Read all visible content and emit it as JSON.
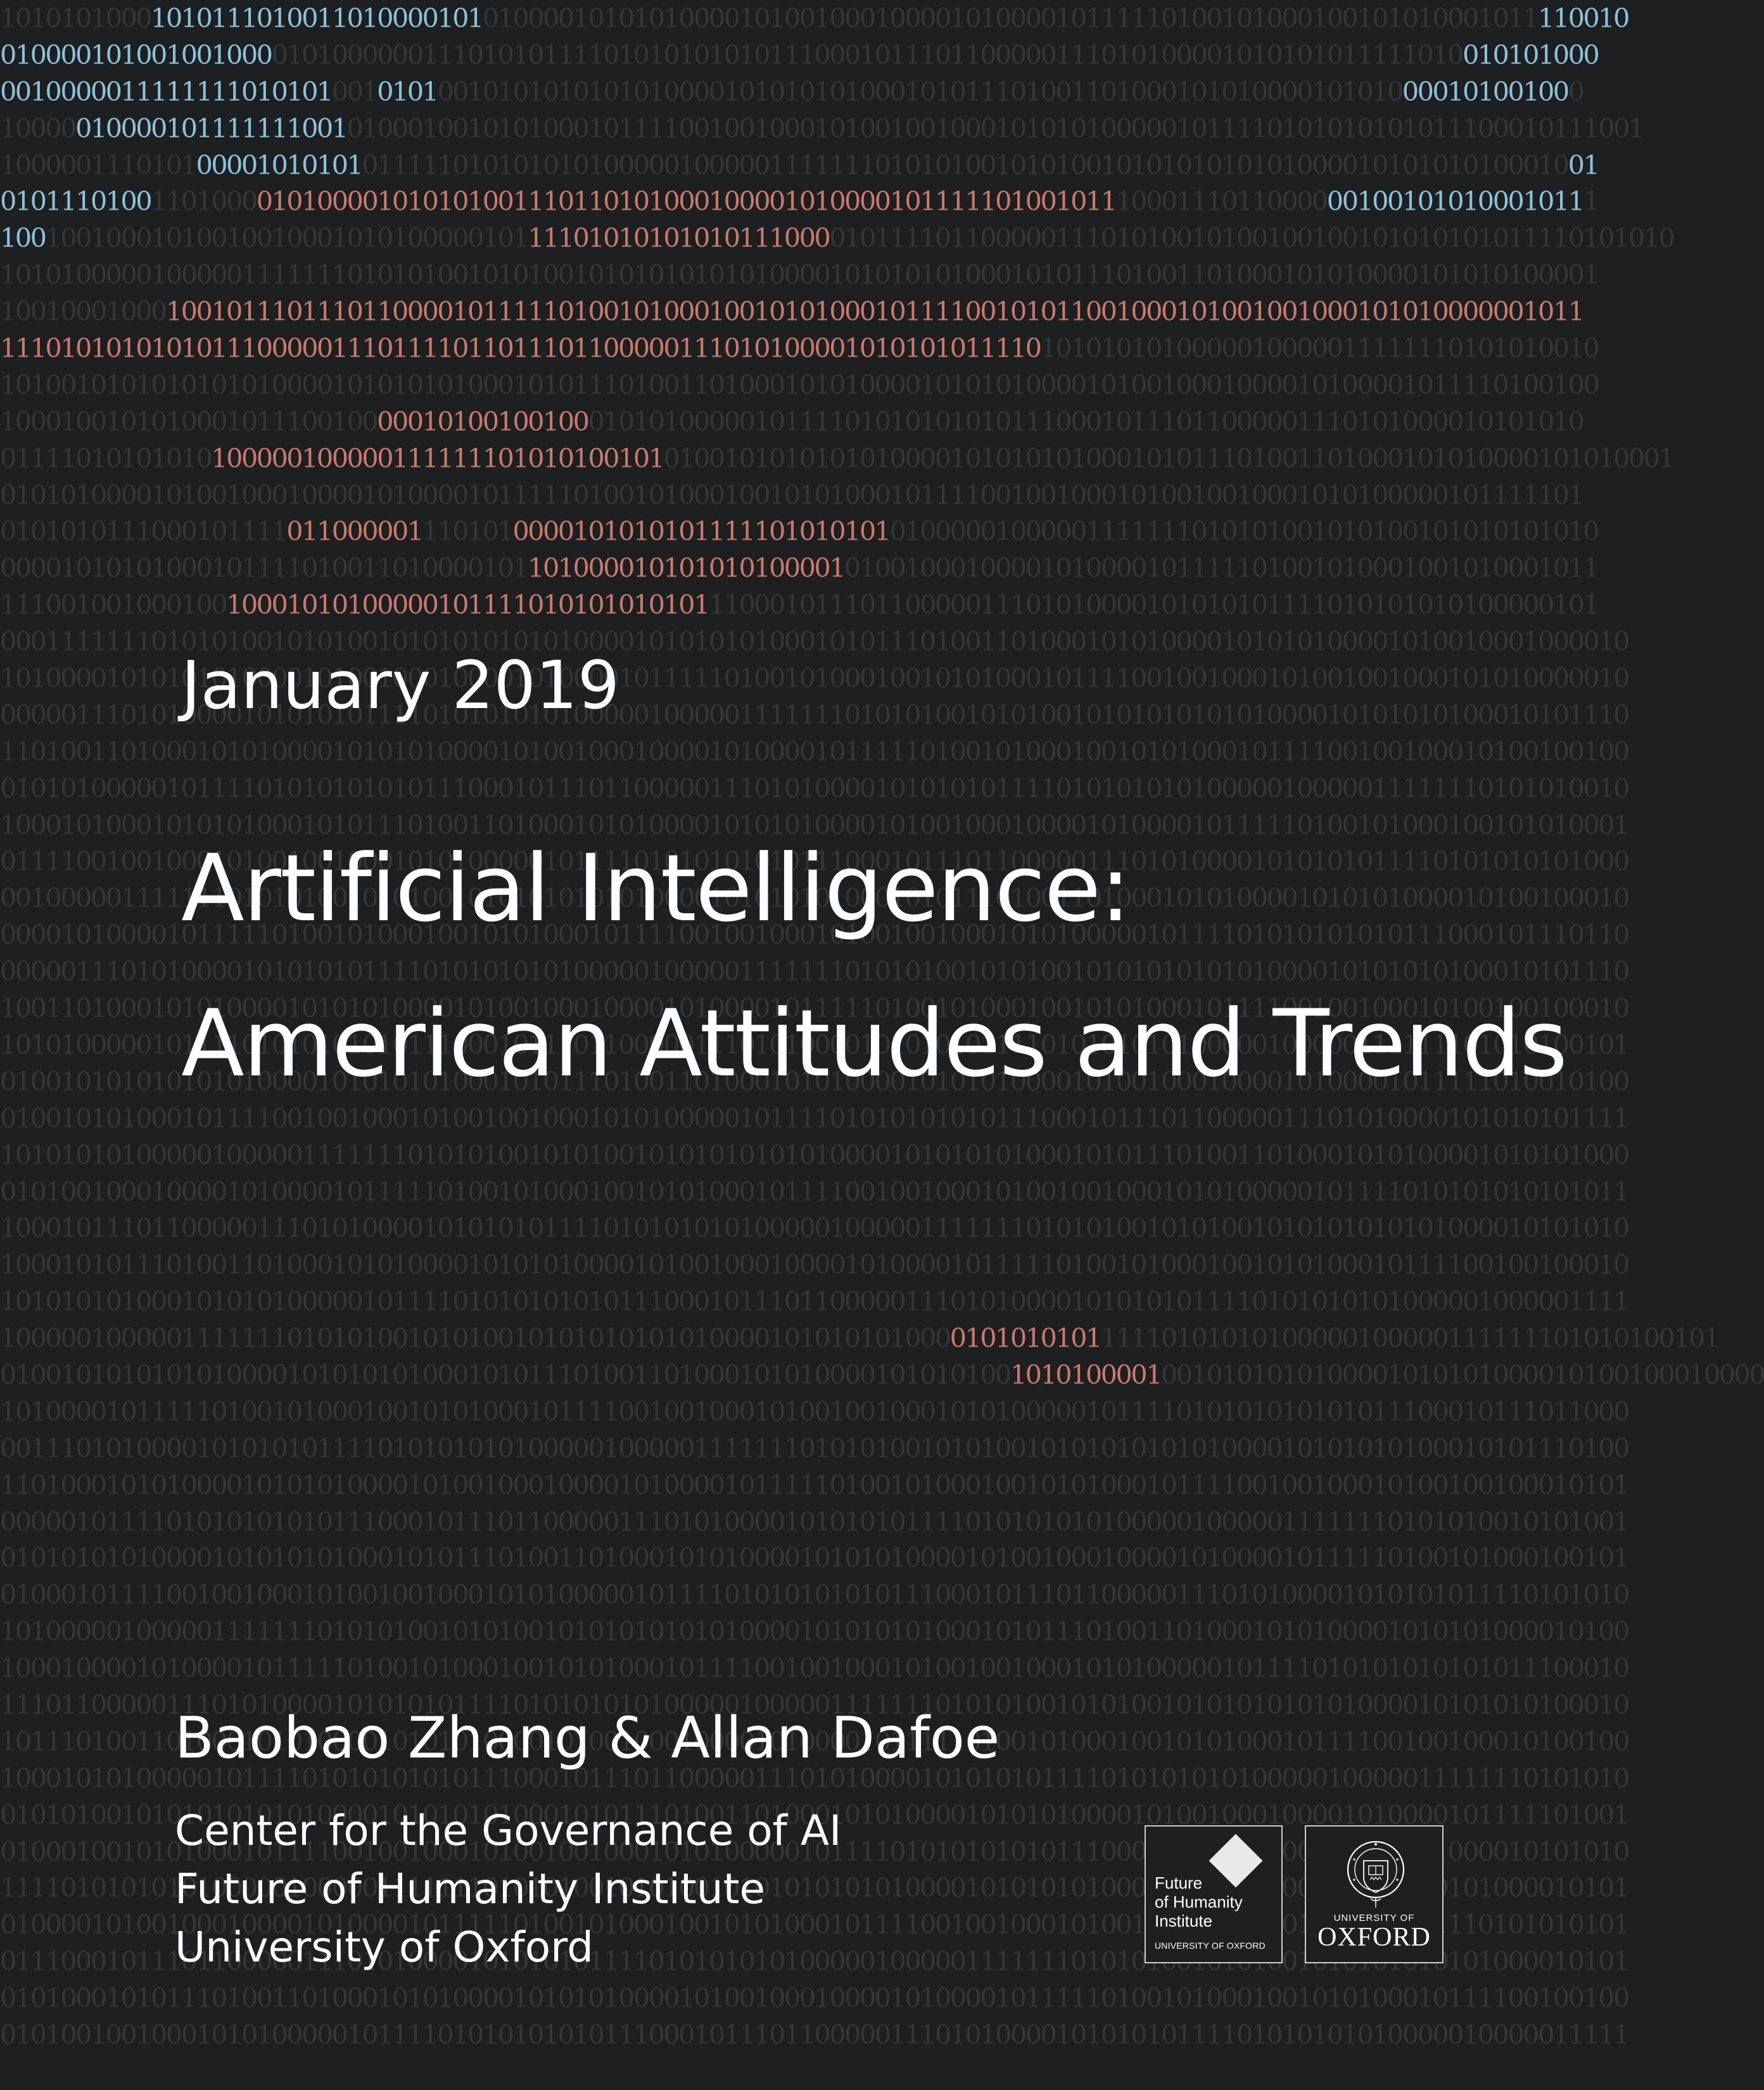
{
  "cover": {
    "date": "January 2019",
    "title_line_1": "Artificial Intelligence:",
    "title_line_2": "American Attitudes and Trends",
    "authors": "Baobao Zhang & Allan Dafoe",
    "affiliations": [
      "Center for the Governance of AI",
      "Future of Humanity Institute",
      "University of Oxford"
    ]
  },
  "logos": {
    "fhi": {
      "icon": "diamond-icon",
      "lines": [
        "Future",
        "of Humanity",
        "Institute"
      ],
      "subtitle": "UNIVERSITY OF OXFORD"
    },
    "oxford": {
      "icon": "oxford-seal-icon",
      "small": "UNIVERSITY OF",
      "big": "OXFORD"
    }
  },
  "background": {
    "style": "binary-digits",
    "colors": {
      "base": "#1e1f21",
      "dim_digits": "#2b2c2f",
      "highlight_blue": "#8cc3db",
      "highlight_red": "#c97a6d"
    },
    "rows": [
      [
        [
          "d",
          "1010101000"
        ],
        [
          "b",
          "1010111010011010000101"
        ],
        [
          "d",
          "0100001010101000010100100010000101000010111110100101000100101010001011"
        ],
        [
          "b",
          "110010"
        ]
      ],
      [
        [
          "b",
          "010000101001001000"
        ],
        [
          "d",
          "0101000000111010101111010101010101110001011101100000111010100001010101011111010"
        ],
        [
          "b",
          "010101000"
        ]
      ],
      [
        [
          "b",
          "0010000011111111010101"
        ],
        [
          "d",
          "001"
        ],
        [
          "b",
          "0101"
        ],
        [
          "d",
          "0010101010101010000101010101000101011101001101000101010000101010"
        ],
        [
          "b",
          "00010100100"
        ],
        [
          "d",
          "0"
        ]
      ],
      [
        [
          "d",
          "10000"
        ],
        [
          "b",
          "010000101111111001"
        ],
        [
          "d",
          "01000100101010001011110010010001010010010001010101000001011110101010101011100010111001"
        ]
      ],
      [
        [
          "d",
          "1000001110101"
        ],
        [
          "b",
          "00001010101"
        ],
        [
          "d",
          "01111101010101010000010000011111110101010010101001010101010101000010101010100010"
        ],
        [
          "b",
          "01"
        ]
      ],
      [
        [
          "b",
          "0101110100"
        ],
        [
          "d",
          "1101000"
        ],
        [
          "r",
          "010100001010101001110110101000100001010000101111101001011"
        ],
        [
          "d",
          "10001110110000"
        ],
        [
          "b",
          "00100101010001011"
        ],
        [
          "d",
          "1"
        ]
      ],
      [
        [
          "b",
          "100"
        ],
        [
          "d",
          "10010001010010010001010100000101"
        ],
        [
          "r",
          "11101010101010111000"
        ],
        [
          "d",
          "01011110110000011101010010100100100101010101011110101010"
        ]
      ],
      [
        [
          "d",
          "1010100000100000111111101010100101010010101010101010000101010101000101011101001101000101010000101010100001"
        ]
      ],
      [
        [
          "d",
          "10010001000"
        ],
        [
          "r",
          "1001011101110110000101111101001010001001010100010111100101011001000101001001000101010000001011"
        ]
      ],
      [
        [
          "r",
          "111010101010101110000011101111011011101100000111010100001010101011110"
        ],
        [
          "d",
          "1010101010000010000011111110101010010"
        ]
      ],
      [
        [
          "d",
          "1010010101010101010000101010101000101011101001101000101010000101010100001010010001000010100001011110100100"
        ]
      ],
      [
        [
          "d",
          "1000100101010001011100100"
        ],
        [
          "r",
          "00010100100100"
        ],
        [
          "d",
          "010101000001011110101010101011100010111011000001110101000010101010"
        ]
      ],
      [
        [
          "d",
          "01111010101010"
        ],
        [
          "r",
          "100000100000111111101010100101"
        ],
        [
          "d",
          "0100101010101010000101010101000101011101001101000101010000101010001"
        ]
      ],
      [
        [
          "d",
          "010101000010100100010000101000010111110100101000100101010001011110010010001010010010001010100000101111101"
        ]
      ],
      [
        [
          "d",
          "0101010111000101111"
        ],
        [
          "r",
          "011000001"
        ],
        [
          "d",
          "110101"
        ],
        [
          "r",
          "0000101010101111101010101"
        ],
        [
          "d",
          "01000001000001111111010101001010100101010101010"
        ]
      ],
      [
        [
          "d",
          "00001010101000101111010011010000101"
        ],
        [
          "r",
          "101000010101010100001"
        ],
        [
          "d",
          "01001000100001010000101111101001010001001010001011"
        ]
      ],
      [
        [
          "d",
          "111001001000100"
        ],
        [
          "r",
          "10001010100000101111010101010101"
        ],
        [
          "d",
          "11000101110110000011101010000101010101111010101010100000101"
        ]
      ],
      [
        [
          "d",
          "000111111101010100101010010101010101010000101010101000101011101001101000101010000101010100001010010001000010"
        ]
      ],
      [
        [
          "d",
          "101000010101010100001010010001000010100001011111010010100010010101000101111001001000101001001000101010000010"
        ]
      ],
      [
        [
          "d",
          "000001110101000010101010111101010101010000010000011111110101010010101001010101010101000010101010100010101110"
        ]
      ],
      [
        [
          "d",
          "110100110100010101000010101010000101001000100001010000101111101001010001001010100010111100100100010100100100"
        ]
      ],
      [
        [
          "d",
          "010101000001011110101010101011100010111011000001110101000010101010111101010101010000010000011111110101010010"
        ]
      ],
      [
        [
          "d",
          "100010100010101010001010111010011010001010100001010101000010100100010000101000010111110100101000100101010001"
        ]
      ],
      [
        [
          "d",
          "011110010010001010010010001010100000101111010101010101110001011101100000111010100001010101011110101010101000"
        ]
      ],
      [
        [
          "d",
          "001000001111111010101001010100101010101010100001010101010001010111010011010001010100001010101000010100100010"
        ]
      ],
      [
        [
          "d",
          "000010100001011111010010100010010101000101111001001000101001001000101010000010111101010101010111000101110110"
        ]
      ],
      [
        [
          "d",
          "000001110101000010101010111101010101010000010000011111110101010010101001010101010101000010101010100010101110"
        ]
      ],
      [
        [
          "d",
          "100110100010101000010101010000101001000100001010000101111101001010001001010100010111100100100010100100100010"
        ]
      ],
      [
        [
          "d",
          "101010000010111101010101010111000101110110000011101010000101010101111010101010100000100000111111101010100101"
        ]
      ],
      [
        [
          "d",
          "010010101010101010000101010101000101011101001101000101010000101010100001010010001000010100001011111010010100"
        ]
      ],
      [
        [
          "d",
          "010010101000101111001001000101001001000101010000010111101010101010111000101110110000011101010000101010101111"
        ]
      ],
      [
        [
          "d",
          "101010101000001000001111111010101001010100101010101010100001010101010001010111010011010001010100001010101000"
        ]
      ],
      [
        [
          "d",
          "010100100010000101000010111110100101000100101010001011110010010001010010010001010100000101111010101010101011"
        ]
      ],
      [
        [
          "d",
          "100010111011000001110101000010101010111101010101010000010000011111110101010010101001010101010101000010101010"
        ]
      ],
      [
        [
          "d",
          "100010101110100110100010101000010101010000101001000100001010000101111101001010001001010100010111100100100010"
        ]
      ],
      [
        [
          "d",
          "101010101000101010100000101111010101010101110001011101100000111010100001010101011110101010101000001000001111"
        ]
      ],
      [
        [
          "d",
          "100000100000111111101010100101010010101010101010000101010101000"
        ],
        [
          "r",
          "0101010101"
        ],
        [
          "d",
          "11110101010100000100000111111101010100101"
        ]
      ],
      [
        [
          "d",
          "0100101010101010000101010101000101011101001101000101010000101010100"
        ],
        [
          "r",
          "1010100001"
        ],
        [
          "d",
          "0010101010100001010101000010100100010000"
        ]
      ],
      [
        [
          "d",
          "101000010111110100101000100101010001011110010010001010010010001010100000101111010101010101011100010111011000"
        ]
      ],
      [
        [
          "d",
          "001110101000010101010111101010101010000010000011111110101010010101001010101010101000010101010100010101110100"
        ]
      ],
      [
        [
          "d",
          "110100010101000010101010000101001000100001010000101111101001010001001010100010111100100100010100100100010101"
        ]
      ],
      [
        [
          "d",
          "000001011110101010101011100010111011000001110101000010101010111101010101010000010000011111110101010010101001"
        ]
      ],
      [
        [
          "d",
          "010101010100001010101010001010111010011010001010100001010101000010100100010000101000010111110100101000100101"
        ]
      ],
      [
        [
          "d",
          "010001011110010010001010010010001010100000101111010101010101110001011101100000111010100001010101011110101010"
        ]
      ],
      [
        [
          "d",
          "101000001000001111111010101001010100101010101010100001010101010001010111010011010001010100001010101000010100"
        ]
      ],
      [
        [
          "d",
          "100010000101000010111110100101000100101010001011110010010001010010010001010100000101111010101010101011100010"
        ]
      ],
      [
        [
          "d",
          "111011000001110101000010101010111101010101010000010000011111110101010010101001010101010101000010101010100010"
        ]
      ],
      [
        [
          "d",
          "101110100110100010101000010101010000101001000100001010000101111101001010001001010100010111100100100010100100"
        ]
      ],
      [
        [
          "d",
          "100010101000001011110101010101011100010111011000001110101000010101010111101010101010000010000011111110101010"
        ]
      ],
      [
        [
          "d",
          "010101001010101010101000010101010100010101110100110100010101000010101010000101001000100001010000101111101001"
        ]
      ],
      [
        [
          "d",
          "010001001010100010111100100100010100100100010101000001011110101010101011100010111011000001110101000010101010"
        ]
      ],
      [
        [
          "d",
          "111101010101010000010000011111110101010010101001010101010101000010101010100010101110100110100010101000010101"
        ]
      ],
      [
        [
          "d",
          "010000101001000100001010000101111101001010001001010100010111100100100010100100100010101000001011110101010101"
        ]
      ],
      [
        [
          "d",
          "011100010111011000001110101000010101010111101010101010000010000011111110101010010101001010101010101000010101"
        ]
      ],
      [
        [
          "d",
          "010100010101110100110100010101000010101010000101001000100001010000101111101001010001001010100010111100100100"
        ]
      ],
      [
        [
          "d",
          "010100100100010101000001011110101010101011100010111011000001110101000010101010111101010101010000010000011111"
        ]
      ]
    ]
  }
}
